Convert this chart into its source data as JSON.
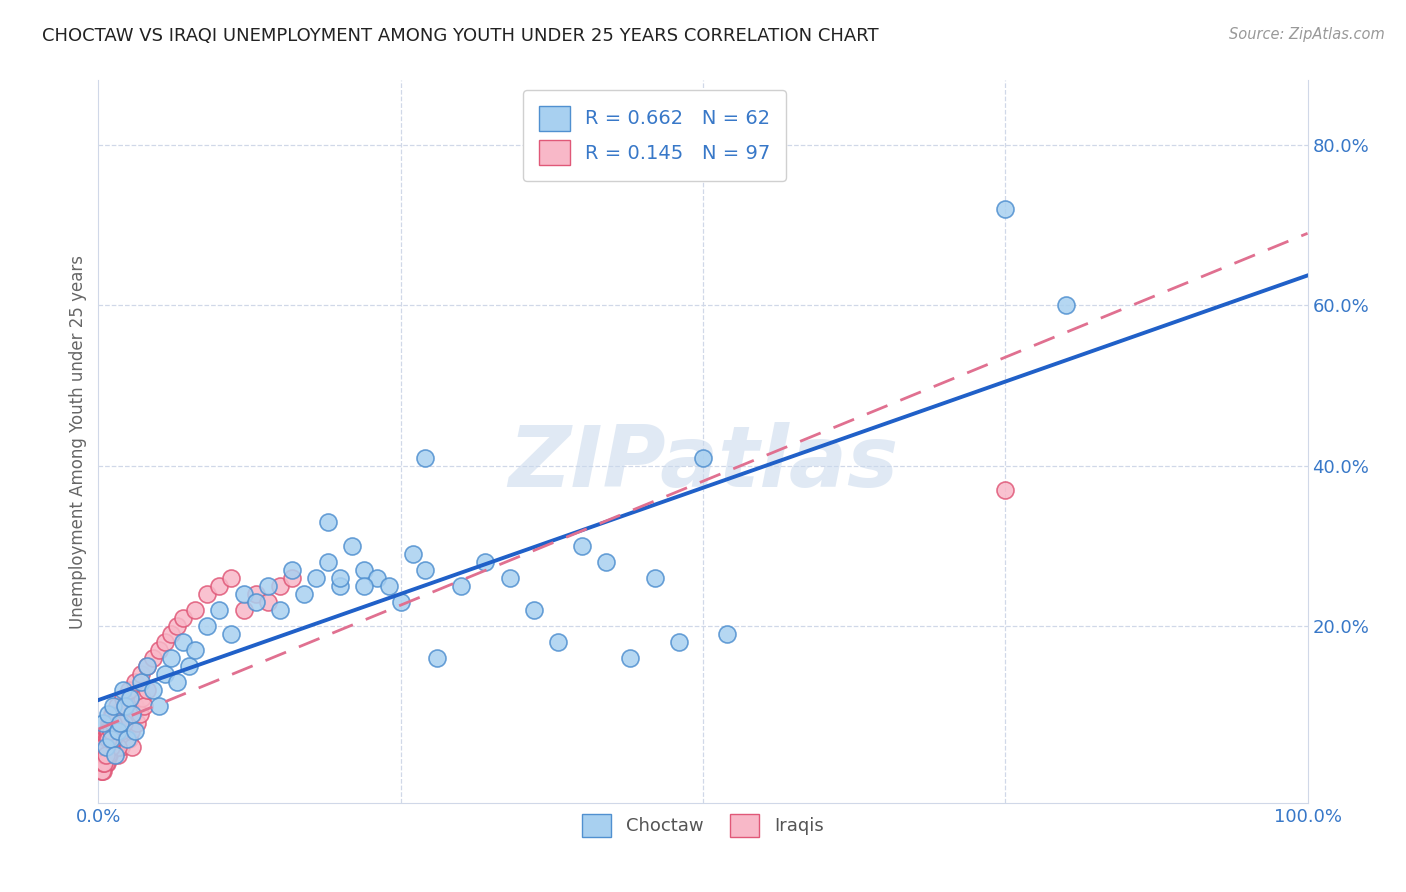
{
  "title": "CHOCTAW VS IRAQI UNEMPLOYMENT AMONG YOUTH UNDER 25 YEARS CORRELATION CHART",
  "source": "Source: ZipAtlas.com",
  "ylabel": "Unemployment Among Youth under 25 years",
  "xlim": [
    0.0,
    1.0
  ],
  "ylim": [
    -0.02,
    0.88
  ],
  "choctaw_color": "#a8d0f0",
  "iraqi_color": "#f8b8c8",
  "choctaw_edge": "#5090d0",
  "iraqi_edge": "#e05878",
  "trend_choctaw_color": "#2060c8",
  "trend_iraqi_color": "#e07090",
  "R_choctaw": 0.662,
  "N_choctaw": 62,
  "R_iraqi": 0.145,
  "N_iraqi": 97,
  "legend_label_choctaw": "Choctaw",
  "legend_label_iraqi": "Iraqis",
  "watermark": "ZIPatlas",
  "background_color": "#ffffff",
  "choctaw_x": [
    0.004,
    0.006,
    0.008,
    0.01,
    0.012,
    0.014,
    0.016,
    0.018,
    0.02,
    0.022,
    0.024,
    0.026,
    0.028,
    0.03,
    0.035,
    0.04,
    0.045,
    0.05,
    0.055,
    0.06,
    0.065,
    0.07,
    0.075,
    0.08,
    0.09,
    0.1,
    0.11,
    0.12,
    0.13,
    0.14,
    0.15,
    0.16,
    0.17,
    0.18,
    0.19,
    0.2,
    0.21,
    0.22,
    0.23,
    0.24,
    0.25,
    0.26,
    0.27,
    0.28,
    0.3,
    0.32,
    0.34,
    0.36,
    0.38,
    0.4,
    0.42,
    0.44,
    0.46,
    0.48,
    0.5,
    0.52,
    0.22,
    0.2,
    0.19,
    0.75,
    0.8,
    0.27
  ],
  "choctaw_y": [
    0.08,
    0.05,
    0.09,
    0.06,
    0.1,
    0.04,
    0.07,
    0.08,
    0.12,
    0.1,
    0.06,
    0.11,
    0.09,
    0.07,
    0.13,
    0.15,
    0.12,
    0.1,
    0.14,
    0.16,
    0.13,
    0.18,
    0.15,
    0.17,
    0.2,
    0.22,
    0.19,
    0.24,
    0.23,
    0.25,
    0.22,
    0.27,
    0.24,
    0.26,
    0.28,
    0.25,
    0.3,
    0.27,
    0.26,
    0.25,
    0.23,
    0.29,
    0.27,
    0.16,
    0.25,
    0.28,
    0.26,
    0.22,
    0.18,
    0.3,
    0.28,
    0.16,
    0.26,
    0.18,
    0.41,
    0.19,
    0.25,
    0.26,
    0.33,
    0.72,
    0.6,
    0.41
  ],
  "iraqi_x": [
    0.002,
    0.003,
    0.004,
    0.005,
    0.006,
    0.007,
    0.008,
    0.009,
    0.01,
    0.011,
    0.012,
    0.013,
    0.014,
    0.015,
    0.016,
    0.017,
    0.018,
    0.019,
    0.02,
    0.021,
    0.022,
    0.023,
    0.024,
    0.025,
    0.026,
    0.027,
    0.028,
    0.029,
    0.03,
    0.032,
    0.034,
    0.036,
    0.038,
    0.04,
    0.003,
    0.004,
    0.005,
    0.006,
    0.007,
    0.008,
    0.009,
    0.01,
    0.011,
    0.012,
    0.013,
    0.014,
    0.015,
    0.016,
    0.017,
    0.018,
    0.019,
    0.02,
    0.021,
    0.022,
    0.025,
    0.03,
    0.035,
    0.04,
    0.045,
    0.05,
    0.055,
    0.06,
    0.065,
    0.07,
    0.08,
    0.09,
    0.1,
    0.11,
    0.12,
    0.13,
    0.14,
    0.15,
    0.16,
    0.002,
    0.003,
    0.004,
    0.005,
    0.006,
    0.007,
    0.008,
    0.009,
    0.01,
    0.011,
    0.012,
    0.003,
    0.004,
    0.005,
    0.006,
    0.007,
    0.008,
    0.75,
    0.004,
    0.005,
    0.006,
    0.008,
    0.01,
    0.012
  ],
  "iraqi_y": [
    0.04,
    0.03,
    0.05,
    0.06,
    0.04,
    0.07,
    0.05,
    0.08,
    0.06,
    0.09,
    0.05,
    0.07,
    0.06,
    0.08,
    0.04,
    0.09,
    0.07,
    0.05,
    0.1,
    0.06,
    0.08,
    0.07,
    0.09,
    0.06,
    0.08,
    0.07,
    0.05,
    0.09,
    0.1,
    0.08,
    0.09,
    0.11,
    0.1,
    0.12,
    0.03,
    0.04,
    0.05,
    0.06,
    0.03,
    0.07,
    0.04,
    0.08,
    0.05,
    0.09,
    0.06,
    0.07,
    0.1,
    0.05,
    0.08,
    0.09,
    0.07,
    0.11,
    0.08,
    0.1,
    0.12,
    0.13,
    0.14,
    0.15,
    0.16,
    0.17,
    0.18,
    0.19,
    0.2,
    0.21,
    0.22,
    0.24,
    0.25,
    0.26,
    0.22,
    0.24,
    0.23,
    0.25,
    0.26,
    0.02,
    0.03,
    0.02,
    0.04,
    0.03,
    0.05,
    0.04,
    0.06,
    0.05,
    0.07,
    0.06,
    0.02,
    0.03,
    0.04,
    0.05,
    0.06,
    0.07,
    0.37,
    0.05,
    0.03,
    0.04,
    0.06,
    0.07,
    0.08
  ]
}
